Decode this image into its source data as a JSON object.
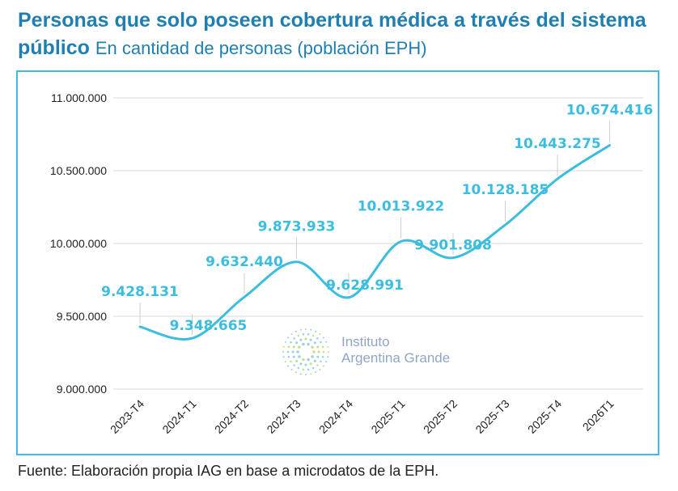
{
  "header": {
    "title_bold": "Personas que solo poseen cobertura médica a través del sistema público",
    "title_sub": "En cantidad de personas (población EPH)"
  },
  "footer": {
    "source": "Fuente: Elaboración propia IAG en base a microdatos de la EPH."
  },
  "watermark": {
    "line1": "Instituto",
    "line2": "Argentina Grande"
  },
  "colors": {
    "title": "#1f7fb0",
    "line": "#3cbde0",
    "label": "#3cbde0",
    "frame": "#3cbde0",
    "grid": "#d8d8d8"
  },
  "chart_data": {
    "type": "line",
    "title": "Personas que solo poseen cobertura médica a través del sistema público",
    "subtitle": "En cantidad de personas (población EPH)",
    "categories": [
      "2023-T4",
      "2024-T1",
      "2024-T2",
      "2024-T3",
      "2024-T4",
      "2025-T1",
      "2025-T2",
      "2025-T3",
      "2025-T4",
      "2026T1"
    ],
    "values": [
      9428131,
      9348665,
      9632440,
      9873933,
      9628991,
      10013922,
      9901808,
      10128185,
      10443275,
      10674416
    ],
    "value_labels": [
      "9.428.131",
      "9.348.665",
      "9.632.440",
      "9.873.933",
      "9.628.991",
      "10.013.922",
      "9.901.808",
      "10.128.185",
      "10.443.275",
      "10.674.416"
    ],
    "yticks": [
      9000000,
      9500000,
      10000000,
      10500000,
      11000000
    ],
    "ytick_labels": [
      "9.000.000",
      "9.500.000",
      "10.000.000",
      "10.500.000",
      "11.000.000"
    ],
    "ylim": [
      9000000,
      11000000
    ],
    "grid": true,
    "legend": "none"
  }
}
